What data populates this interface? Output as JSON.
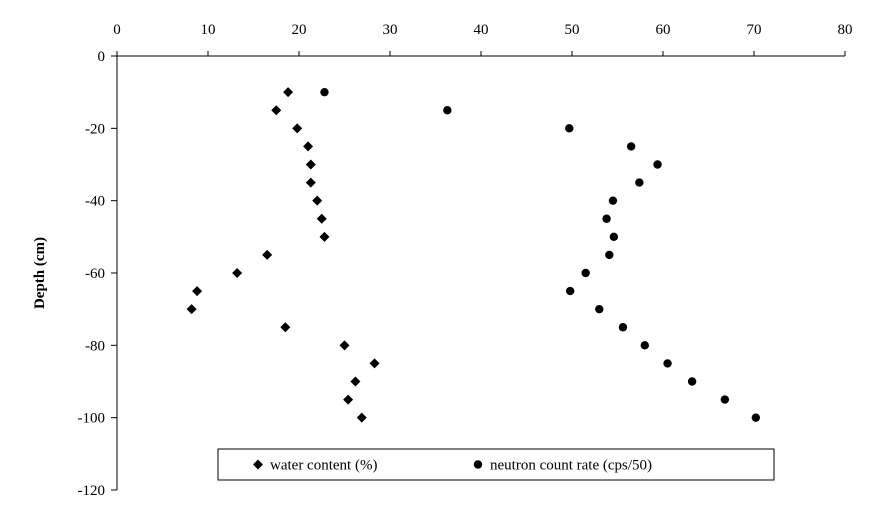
{
  "chart_data": {
    "type": "scatter",
    "title": "",
    "xlabel": "",
    "ylabel": "Depth (cm)",
    "x_axis_position": "top",
    "xlim": [
      0,
      80
    ],
    "ylim": [
      -120,
      0
    ],
    "x_ticks": [
      "0",
      "10",
      "20",
      "30",
      "40",
      "50",
      "60",
      "70",
      "80"
    ],
    "y_ticks": [
      "0",
      "-20",
      "-40",
      "-60",
      "-80",
      "-100",
      "-120"
    ],
    "grid": false,
    "legend_position": "bottom",
    "series": [
      {
        "name": "water content (%)",
        "marker": "diamond",
        "color": "#000000",
        "points": [
          {
            "x": 18.8,
            "y": -10
          },
          {
            "x": 17.5,
            "y": -15
          },
          {
            "x": 19.8,
            "y": -20
          },
          {
            "x": 21.0,
            "y": -25
          },
          {
            "x": 21.3,
            "y": -30
          },
          {
            "x": 21.3,
            "y": -35
          },
          {
            "x": 22.0,
            "y": -40
          },
          {
            "x": 22.5,
            "y": -45
          },
          {
            "x": 22.8,
            "y": -50
          },
          {
            "x": 16.5,
            "y": -55
          },
          {
            "x": 13.2,
            "y": -60
          },
          {
            "x": 8.8,
            "y": -65
          },
          {
            "x": 8.2,
            "y": -70
          },
          {
            "x": 18.5,
            "y": -75
          },
          {
            "x": 25.0,
            "y": -80
          },
          {
            "x": 28.3,
            "y": -85
          },
          {
            "x": 26.2,
            "y": -90
          },
          {
            "x": 25.4,
            "y": -95
          },
          {
            "x": 26.9,
            "y": -100
          }
        ]
      },
      {
        "name": "neutron count rate (cps/50)",
        "marker": "circle",
        "color": "#000000",
        "points": [
          {
            "x": 22.8,
            "y": -10
          },
          {
            "x": 36.3,
            "y": -15
          },
          {
            "x": 49.7,
            "y": -20
          },
          {
            "x": 56.5,
            "y": -25
          },
          {
            "x": 59.4,
            "y": -30
          },
          {
            "x": 57.4,
            "y": -35
          },
          {
            "x": 54.5,
            "y": -40
          },
          {
            "x": 53.8,
            "y": -45
          },
          {
            "x": 54.6,
            "y": -50
          },
          {
            "x": 54.1,
            "y": -55
          },
          {
            "x": 51.5,
            "y": -60
          },
          {
            "x": 49.8,
            "y": -65
          },
          {
            "x": 53.0,
            "y": -70
          },
          {
            "x": 55.6,
            "y": -75
          },
          {
            "x": 58.0,
            "y": -80
          },
          {
            "x": 60.5,
            "y": -85
          },
          {
            "x": 63.2,
            "y": -90
          },
          {
            "x": 66.8,
            "y": -95
          },
          {
            "x": 70.2,
            "y": -100
          }
        ]
      }
    ]
  }
}
